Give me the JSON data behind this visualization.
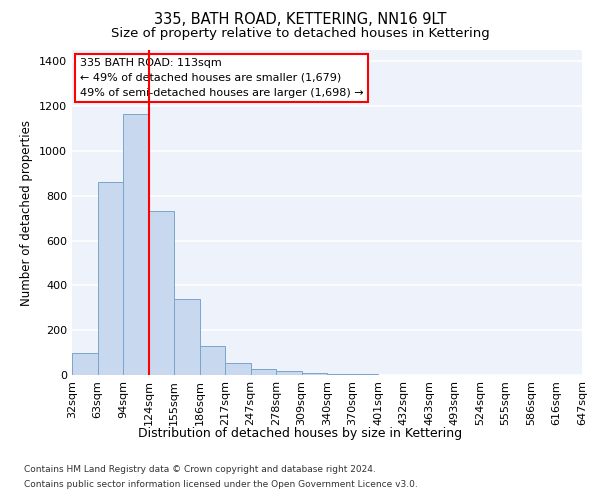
{
  "title": "335, BATH ROAD, KETTERING, NN16 9LT",
  "subtitle": "Size of property relative to detached houses in Kettering",
  "xlabel": "Distribution of detached houses by size in Kettering",
  "ylabel": "Number of detached properties",
  "footer_line1": "Contains HM Land Registry data © Crown copyright and database right 2024.",
  "footer_line2": "Contains public sector information licensed under the Open Government Licence v3.0.",
  "bin_labels": [
    "32sqm",
    "63sqm",
    "94sqm",
    "124sqm",
    "155sqm",
    "186sqm",
    "217sqm",
    "247sqm",
    "278sqm",
    "309sqm",
    "340sqm",
    "370sqm",
    "401sqm",
    "432sqm",
    "463sqm",
    "493sqm",
    "524sqm",
    "555sqm",
    "586sqm",
    "616sqm",
    "647sqm"
  ],
  "bar_values": [
    100,
    860,
    1165,
    730,
    340,
    130,
    55,
    27,
    18,
    10,
    5,
    3,
    2,
    1,
    1,
    1,
    0,
    0,
    0,
    0
  ],
  "bar_color": "#c8d9ef",
  "bar_edge_color": "#7aa5cc",
  "vline_x": 3,
  "vline_color": "red",
  "annotation_text": "335 BATH ROAD: 113sqm\n← 49% of detached houses are smaller (1,679)\n49% of semi-detached houses are larger (1,698) →",
  "ylim": [
    0,
    1450
  ],
  "yticks": [
    0,
    200,
    400,
    600,
    800,
    1000,
    1200,
    1400
  ],
  "bg_color": "#eef2fa",
  "grid_color": "#ffffff",
  "title_fontsize": 10.5,
  "subtitle_fontsize": 9.5,
  "tick_fontsize": 8
}
